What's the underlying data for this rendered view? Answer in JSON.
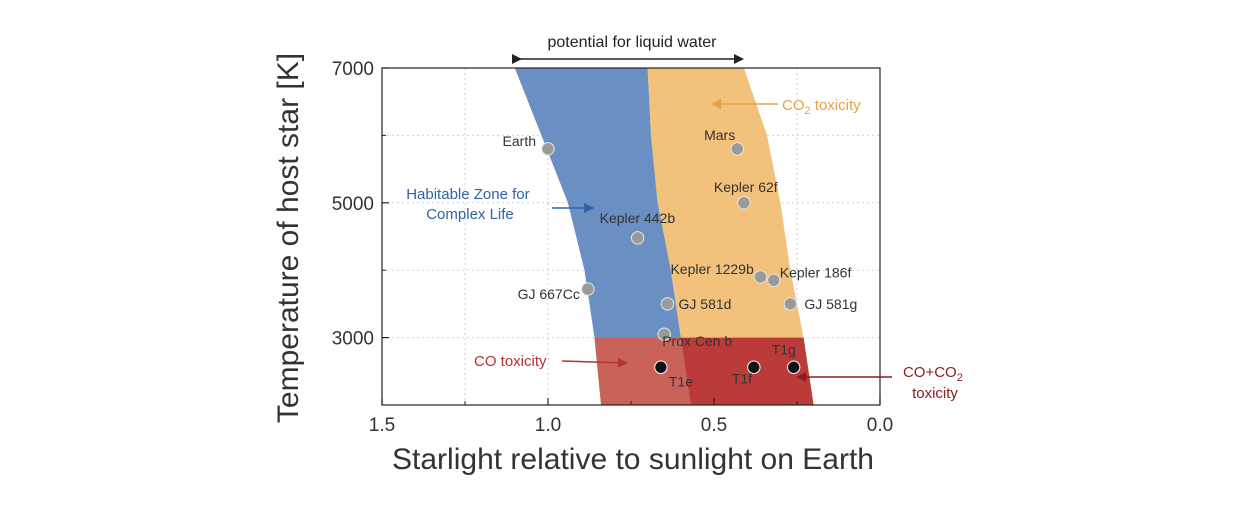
{
  "chart_data": {
    "type": "scatter",
    "title": "",
    "xlabel": "Starlight relative to sunlight on Earth",
    "ylabel": "Temperature of host star [K]",
    "xlim": [
      1.5,
      0.0
    ],
    "ylim": [
      2000,
      7000
    ],
    "x_reversed": true,
    "x_ticks": [
      "1.5",
      "1.0",
      "0.5",
      "0.0"
    ],
    "y_ticks": [
      "3000",
      "5000",
      "7000"
    ],
    "grid": true,
    "points": [
      {
        "label": "Earth",
        "x": 1.0,
        "y": 5800,
        "color": "#9a9a9a"
      },
      {
        "label": "Mars",
        "x": 0.43,
        "y": 5800,
        "color": "#9a9a9a"
      },
      {
        "label": "Kepler 62f",
        "x": 0.41,
        "y": 5000,
        "color": "#9a9a9a"
      },
      {
        "label": "Kepler 442b",
        "x": 0.73,
        "y": 4480,
        "color": "#9a9a9a"
      },
      {
        "label": "Kepler 1229b",
        "x": 0.36,
        "y": 3900,
        "color": "#9a9a9a"
      },
      {
        "label": "Kepler 186f",
        "x": 0.32,
        "y": 3850,
        "color": "#9a9a9a"
      },
      {
        "label": "GJ 667Cc",
        "x": 0.88,
        "y": 3720,
        "color": "#9a9a9a"
      },
      {
        "label": "GJ 581d",
        "x": 0.64,
        "y": 3500,
        "color": "#9a9a9a"
      },
      {
        "label": "GJ 581g",
        "x": 0.27,
        "y": 3500,
        "color": "#9a9a9a"
      },
      {
        "label": "Prox Cen b",
        "x": 0.65,
        "y": 3050,
        "color": "#9a9a9a"
      },
      {
        "label": "T1e",
        "x": 0.66,
        "y": 2560,
        "color": "#111111"
      },
      {
        "label": "T1f",
        "x": 0.38,
        "y": 2560,
        "color": "#111111"
      },
      {
        "label": "T1g",
        "x": 0.26,
        "y": 2560,
        "color": "#111111"
      }
    ],
    "regions": [
      {
        "name": "Habitable Zone for Complex Life",
        "color": "#6a8fc2"
      },
      {
        "name": "CO2 toxicity",
        "color": "#f2c17c"
      },
      {
        "name": "CO toxicity",
        "color": "#c9635a"
      },
      {
        "name": "CO+CO2 toxicity",
        "color": "#bb3b3b"
      }
    ],
    "annotations": {
      "liquid_water": "potential for liquid water",
      "habitable_zone": [
        "Habitable Zone for",
        "Complex Life"
      ],
      "co2_toxicity_prefix": "CO",
      "co2_toxicity_sub": "2",
      "co2_toxicity_suffix": " toxicity",
      "co_toxicity": "CO toxicity",
      "co_co2_line1_prefix": "CO+CO",
      "co_co2_line1_sub": "2",
      "co_co2_line2": "toxicity",
      "colors": {
        "blue_text": "#2e63a6",
        "orange_text": "#e8a340",
        "red_text": "#b5322f"
      }
    }
  }
}
